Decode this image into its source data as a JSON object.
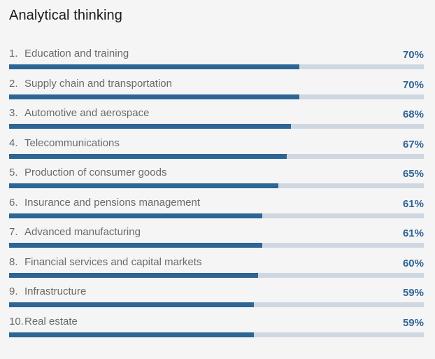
{
  "title": "Analytical thinking",
  "chart_data": {
    "type": "bar",
    "title": "Analytical thinking",
    "categories": [
      "Education and training",
      "Supply chain and transportation",
      "Automotive and aerospace",
      "Telecommunications",
      "Production of consumer goods",
      "Insurance and pensions management",
      "Advanced manufacturing",
      "Financial services and capital markets",
      "Infrastructure",
      "Real estate"
    ],
    "values": [
      70,
      70,
      68,
      67,
      65,
      61,
      61,
      60,
      59,
      59
    ],
    "ylim": [
      0,
      100
    ],
    "grid": false
  },
  "rows": [
    {
      "rank": "1.",
      "label": "Education and training",
      "value": "70%"
    },
    {
      "rank": "2.",
      "label": "Supply chain and transportation",
      "value": "70%"
    },
    {
      "rank": "3.",
      "label": "Automotive and aerospace",
      "value": "68%"
    },
    {
      "rank": "4.",
      "label": "Telecommunications",
      "value": "67%"
    },
    {
      "rank": "5.",
      "label": "Production of consumer goods",
      "value": "65%"
    },
    {
      "rank": "6.",
      "label": "Insurance and pensions management",
      "value": "61%"
    },
    {
      "rank": "7.",
      "label": "Advanced manufacturing",
      "value": "61%"
    },
    {
      "rank": "8.",
      "label": "Financial services and capital markets",
      "value": "60%"
    },
    {
      "rank": "9.",
      "label": "Infrastructure",
      "value": "59%"
    },
    {
      "rank": "10.",
      "label": "Real estate",
      "value": "59%"
    }
  ],
  "colors": {
    "bar": "#2d6595",
    "track": "#cfd8e1",
    "value_text": "#2f6495",
    "background": "#f5f5f5"
  }
}
